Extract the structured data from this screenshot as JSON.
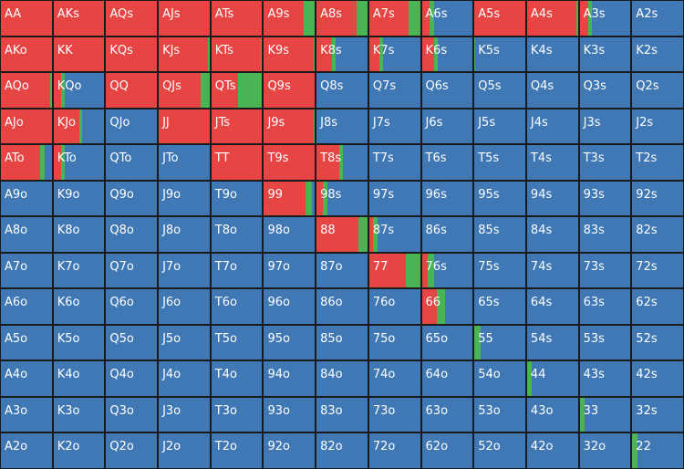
{
  "colors": {
    "raise": "#e74444",
    "call": "#48b454",
    "fold": "#3f78b5",
    "background": "#141414",
    "label": "#ffffff"
  },
  "grid": {
    "rows": [
      [
        [
          "AA",
          1,
          0
        ],
        [
          "AKs",
          1,
          0
        ],
        [
          "AQs",
          1,
          0
        ],
        [
          "AJs",
          1,
          0
        ],
        [
          "ATs",
          1,
          0
        ],
        [
          "A9s",
          0.78,
          0.22
        ],
        [
          "A8s",
          0.78,
          0.22
        ],
        [
          "A7s",
          0.78,
          0.22
        ],
        [
          "A6s",
          0.15,
          0.1
        ],
        [
          "A5s",
          1,
          0
        ],
        [
          "A4s",
          0.97,
          0.03
        ],
        [
          "A3s",
          0.16,
          0.08
        ],
        [
          "A2s",
          0,
          0
        ]
      ],
      [
        [
          "AKo",
          1,
          0
        ],
        [
          "KK",
          1,
          0
        ],
        [
          "KQs",
          1,
          0
        ],
        [
          "KJs",
          0.97,
          0.03
        ],
        [
          "KTs",
          0.97,
          0.03
        ],
        [
          "K9s",
          0.98,
          0.02
        ],
        [
          "K8s",
          0.3,
          0.08
        ],
        [
          "K7s",
          0.2,
          0.08
        ],
        [
          "K6s",
          0.25,
          0.07
        ],
        [
          "K5s",
          0,
          0.02
        ],
        [
          "K4s",
          0,
          0
        ],
        [
          "K3s",
          0,
          0
        ],
        [
          "K2s",
          0,
          0
        ]
      ],
      [
        [
          "AQo",
          0.97,
          0.03
        ],
        [
          "KQo",
          0.15,
          0.08
        ],
        [
          "QQ",
          1,
          0
        ],
        [
          "QJs",
          0.82,
          0.18
        ],
        [
          "QTs",
          0.52,
          0.48
        ],
        [
          "Q9s",
          1,
          0
        ],
        [
          "Q8s",
          0,
          0
        ],
        [
          "Q7s",
          0,
          0
        ],
        [
          "Q6s",
          0,
          0
        ],
        [
          "Q5s",
          0,
          0
        ],
        [
          "Q4s",
          0,
          0
        ],
        [
          "Q3s",
          0,
          0
        ],
        [
          "Q2s",
          0,
          0
        ]
      ],
      [
        [
          "AJo",
          1,
          0
        ],
        [
          "KJo",
          0.5,
          0.07
        ],
        [
          "QJo",
          0,
          0
        ],
        [
          "JJ",
          1,
          0
        ],
        [
          "JTs",
          1,
          0
        ],
        [
          "J9s",
          0.98,
          0.02
        ],
        [
          "J8s",
          0,
          0
        ],
        [
          "J7s",
          0,
          0
        ],
        [
          "J6s",
          0,
          0
        ],
        [
          "J5s",
          0,
          0
        ],
        [
          "J4s",
          0,
          0
        ],
        [
          "J3s",
          0,
          0
        ],
        [
          "J2s",
          0,
          0
        ]
      ],
      [
        [
          "ATo",
          0.78,
          0.08
        ],
        [
          "KTo",
          0.15,
          0.08
        ],
        [
          "QTo",
          0,
          0
        ],
        [
          "JTo",
          0,
          0
        ],
        [
          "TT",
          1,
          0
        ],
        [
          "T9s",
          1,
          0
        ],
        [
          "T8s",
          0.45,
          0.06
        ],
        [
          "T7s",
          0,
          0
        ],
        [
          "T6s",
          0,
          0
        ],
        [
          "T5s",
          0,
          0
        ],
        [
          "T4s",
          0,
          0
        ],
        [
          "T3s",
          0,
          0
        ],
        [
          "T2s",
          0,
          0
        ]
      ],
      [
        [
          "A9o",
          0,
          0
        ],
        [
          "K9o",
          0,
          0
        ],
        [
          "Q9o",
          0,
          0
        ],
        [
          "J9o",
          0,
          0
        ],
        [
          "T9o",
          0,
          0
        ],
        [
          "99",
          0.82,
          0.12
        ],
        [
          "98s",
          0.12,
          0.1
        ],
        [
          "97s",
          0,
          0
        ],
        [
          "96s",
          0,
          0
        ],
        [
          "95s",
          0,
          0
        ],
        [
          "94s",
          0,
          0
        ],
        [
          "93s",
          0,
          0
        ],
        [
          "92s",
          0,
          0
        ]
      ],
      [
        [
          "A8o",
          0,
          0
        ],
        [
          "K8o",
          0,
          0
        ],
        [
          "Q8o",
          0,
          0
        ],
        [
          "J8o",
          0,
          0
        ],
        [
          "T8o",
          0,
          0
        ],
        [
          "98o",
          0,
          0
        ],
        [
          "88",
          0.83,
          0.17
        ],
        [
          "87s",
          0.07,
          0.1
        ],
        [
          "86s",
          0,
          0
        ],
        [
          "85s",
          0,
          0
        ],
        [
          "84s",
          0,
          0
        ],
        [
          "83s",
          0,
          0
        ],
        [
          "82s",
          0,
          0
        ]
      ],
      [
        [
          "A7o",
          0,
          0
        ],
        [
          "K7o",
          0,
          0
        ],
        [
          "Q7o",
          0,
          0
        ],
        [
          "J7o",
          0,
          0
        ],
        [
          "T7o",
          0,
          0
        ],
        [
          "97o",
          0,
          0
        ],
        [
          "87o",
          0,
          0
        ],
        [
          "77",
          0.72,
          0.28
        ],
        [
          "76s",
          0.12,
          0.12
        ],
        [
          "75s",
          0,
          0
        ],
        [
          "74s",
          0,
          0
        ],
        [
          "73s",
          0,
          0
        ],
        [
          "72s",
          0,
          0
        ]
      ],
      [
        [
          "A6o",
          0,
          0
        ],
        [
          "K6o",
          0,
          0
        ],
        [
          "Q6o",
          0,
          0
        ],
        [
          "J6o",
          0,
          0
        ],
        [
          "T6o",
          0,
          0
        ],
        [
          "96o",
          0,
          0
        ],
        [
          "86o",
          0,
          0
        ],
        [
          "76o",
          0,
          0
        ],
        [
          "66",
          0.3,
          0.15
        ],
        [
          "65s",
          0,
          0
        ],
        [
          "64s",
          0,
          0
        ],
        [
          "63s",
          0,
          0
        ],
        [
          "62s",
          0,
          0
        ]
      ],
      [
        [
          "A5o",
          0,
          0
        ],
        [
          "K5o",
          0,
          0
        ],
        [
          "Q5o",
          0,
          0
        ],
        [
          "J5o",
          0,
          0
        ],
        [
          "T5o",
          0,
          0
        ],
        [
          "95o",
          0,
          0
        ],
        [
          "85o",
          0,
          0
        ],
        [
          "75o",
          0,
          0
        ],
        [
          "65o",
          0,
          0
        ],
        [
          "55",
          0,
          0.12
        ],
        [
          "54s",
          0,
          0
        ],
        [
          "53s",
          0,
          0
        ],
        [
          "52s",
          0,
          0
        ]
      ],
      [
        [
          "A4o",
          0,
          0
        ],
        [
          "K4o",
          0,
          0
        ],
        [
          "Q4o",
          0,
          0
        ],
        [
          "J4o",
          0,
          0
        ],
        [
          "T4o",
          0,
          0
        ],
        [
          "94o",
          0,
          0
        ],
        [
          "84o",
          0,
          0
        ],
        [
          "74o",
          0,
          0
        ],
        [
          "64o",
          0,
          0
        ],
        [
          "54o",
          0,
          0
        ],
        [
          "44",
          0,
          0.1
        ],
        [
          "43s",
          0,
          0
        ],
        [
          "42s",
          0,
          0
        ]
      ],
      [
        [
          "A3o",
          0,
          0
        ],
        [
          "K3o",
          0,
          0
        ],
        [
          "Q3o",
          0,
          0
        ],
        [
          "J3o",
          0,
          0
        ],
        [
          "T3o",
          0,
          0
        ],
        [
          "93o",
          0,
          0
        ],
        [
          "83o",
          0,
          0
        ],
        [
          "73o",
          0,
          0
        ],
        [
          "63o",
          0,
          0
        ],
        [
          "53o",
          0,
          0
        ],
        [
          "43o",
          0,
          0
        ],
        [
          "33",
          0,
          0.1
        ],
        [
          "32s",
          0,
          0
        ]
      ],
      [
        [
          "A2o",
          0,
          0
        ],
        [
          "K2o",
          0,
          0
        ],
        [
          "Q2o",
          0,
          0
        ],
        [
          "J2o",
          0,
          0
        ],
        [
          "T2o",
          0,
          0
        ],
        [
          "92o",
          0,
          0
        ],
        [
          "82o",
          0,
          0
        ],
        [
          "72o",
          0,
          0
        ],
        [
          "62o",
          0,
          0
        ],
        [
          "52o",
          0,
          0
        ],
        [
          "42o",
          0,
          0
        ],
        [
          "32o",
          0,
          0
        ],
        [
          "22",
          0,
          0.1
        ]
      ]
    ]
  }
}
